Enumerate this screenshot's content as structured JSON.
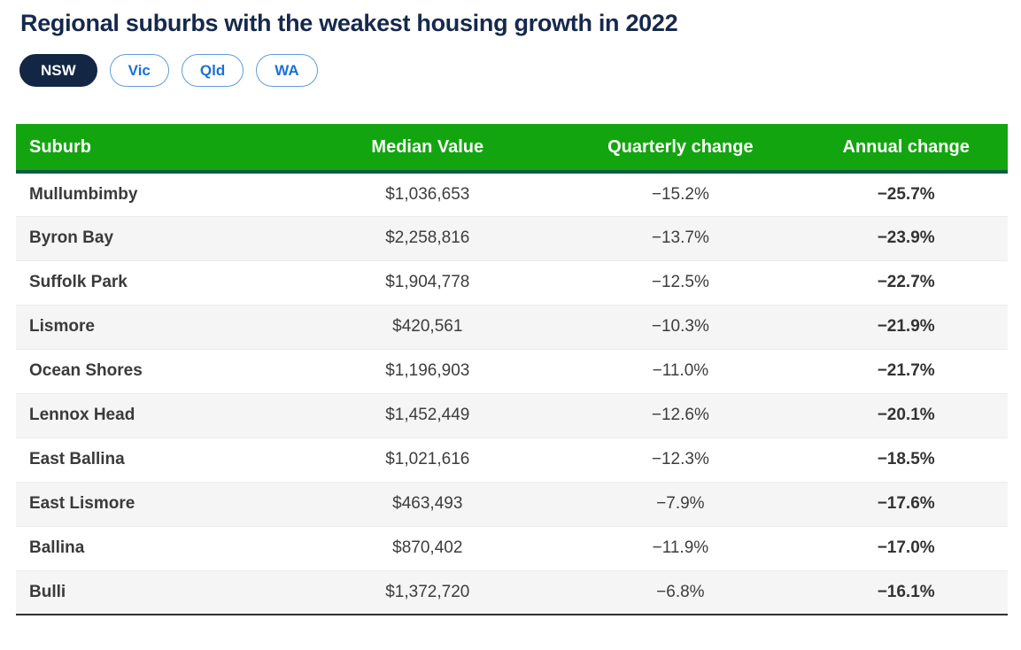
{
  "title": "Regional suburbs with the weakest housing growth in 2022",
  "tabs": [
    {
      "label": "NSW",
      "active": true
    },
    {
      "label": "Vic",
      "active": false
    },
    {
      "label": "Qld",
      "active": false
    },
    {
      "label": "WA",
      "active": false
    }
  ],
  "colors": {
    "header_green": "#13A510",
    "header_green_border": "#0B5D41",
    "title_navy": "#16294C",
    "active_pill_navy": "#132744",
    "pill_blue_text": "#1C70D8",
    "pill_blue_border": "#5E9CDC",
    "zebra_gray": "#F5F5F5",
    "body_text": "#3D3D3D"
  },
  "chart_data": {
    "type": "table",
    "title": "Regional suburbs with the weakest housing growth in 2022",
    "state_selected": "NSW",
    "columns": [
      "Suburb",
      "Median Value",
      "Quarterly change",
      "Annual change"
    ],
    "rows": [
      {
        "suburb": "Mullumbimby",
        "median_value": "$1,036,653",
        "quarterly_change": "−15.2%",
        "annual_change": "−25.7%"
      },
      {
        "suburb": "Byron Bay",
        "median_value": "$2,258,816",
        "quarterly_change": "−13.7%",
        "annual_change": "−23.9%"
      },
      {
        "suburb": "Suffolk Park",
        "median_value": "$1,904,778",
        "quarterly_change": "−12.5%",
        "annual_change": "−22.7%"
      },
      {
        "suburb": "Lismore",
        "median_value": "$420,561",
        "quarterly_change": "−10.3%",
        "annual_change": "−21.9%"
      },
      {
        "suburb": "Ocean Shores",
        "median_value": "$1,196,903",
        "quarterly_change": "−11.0%",
        "annual_change": "−21.7%"
      },
      {
        "suburb": "Lennox Head",
        "median_value": "$1,452,449",
        "quarterly_change": "−12.6%",
        "annual_change": "−20.1%"
      },
      {
        "suburb": "East Ballina",
        "median_value": "$1,021,616",
        "quarterly_change": "−12.3%",
        "annual_change": "−18.5%"
      },
      {
        "suburb": "East Lismore",
        "median_value": "$463,493",
        "quarterly_change": "−7.9%",
        "annual_change": "−17.6%"
      },
      {
        "suburb": "Ballina",
        "median_value": "$870,402",
        "quarterly_change": "−11.9%",
        "annual_change": "−17.0%"
      },
      {
        "suburb": "Bulli",
        "median_value": "$1,372,720",
        "quarterly_change": "−6.8%",
        "annual_change": "−16.1%"
      }
    ]
  }
}
